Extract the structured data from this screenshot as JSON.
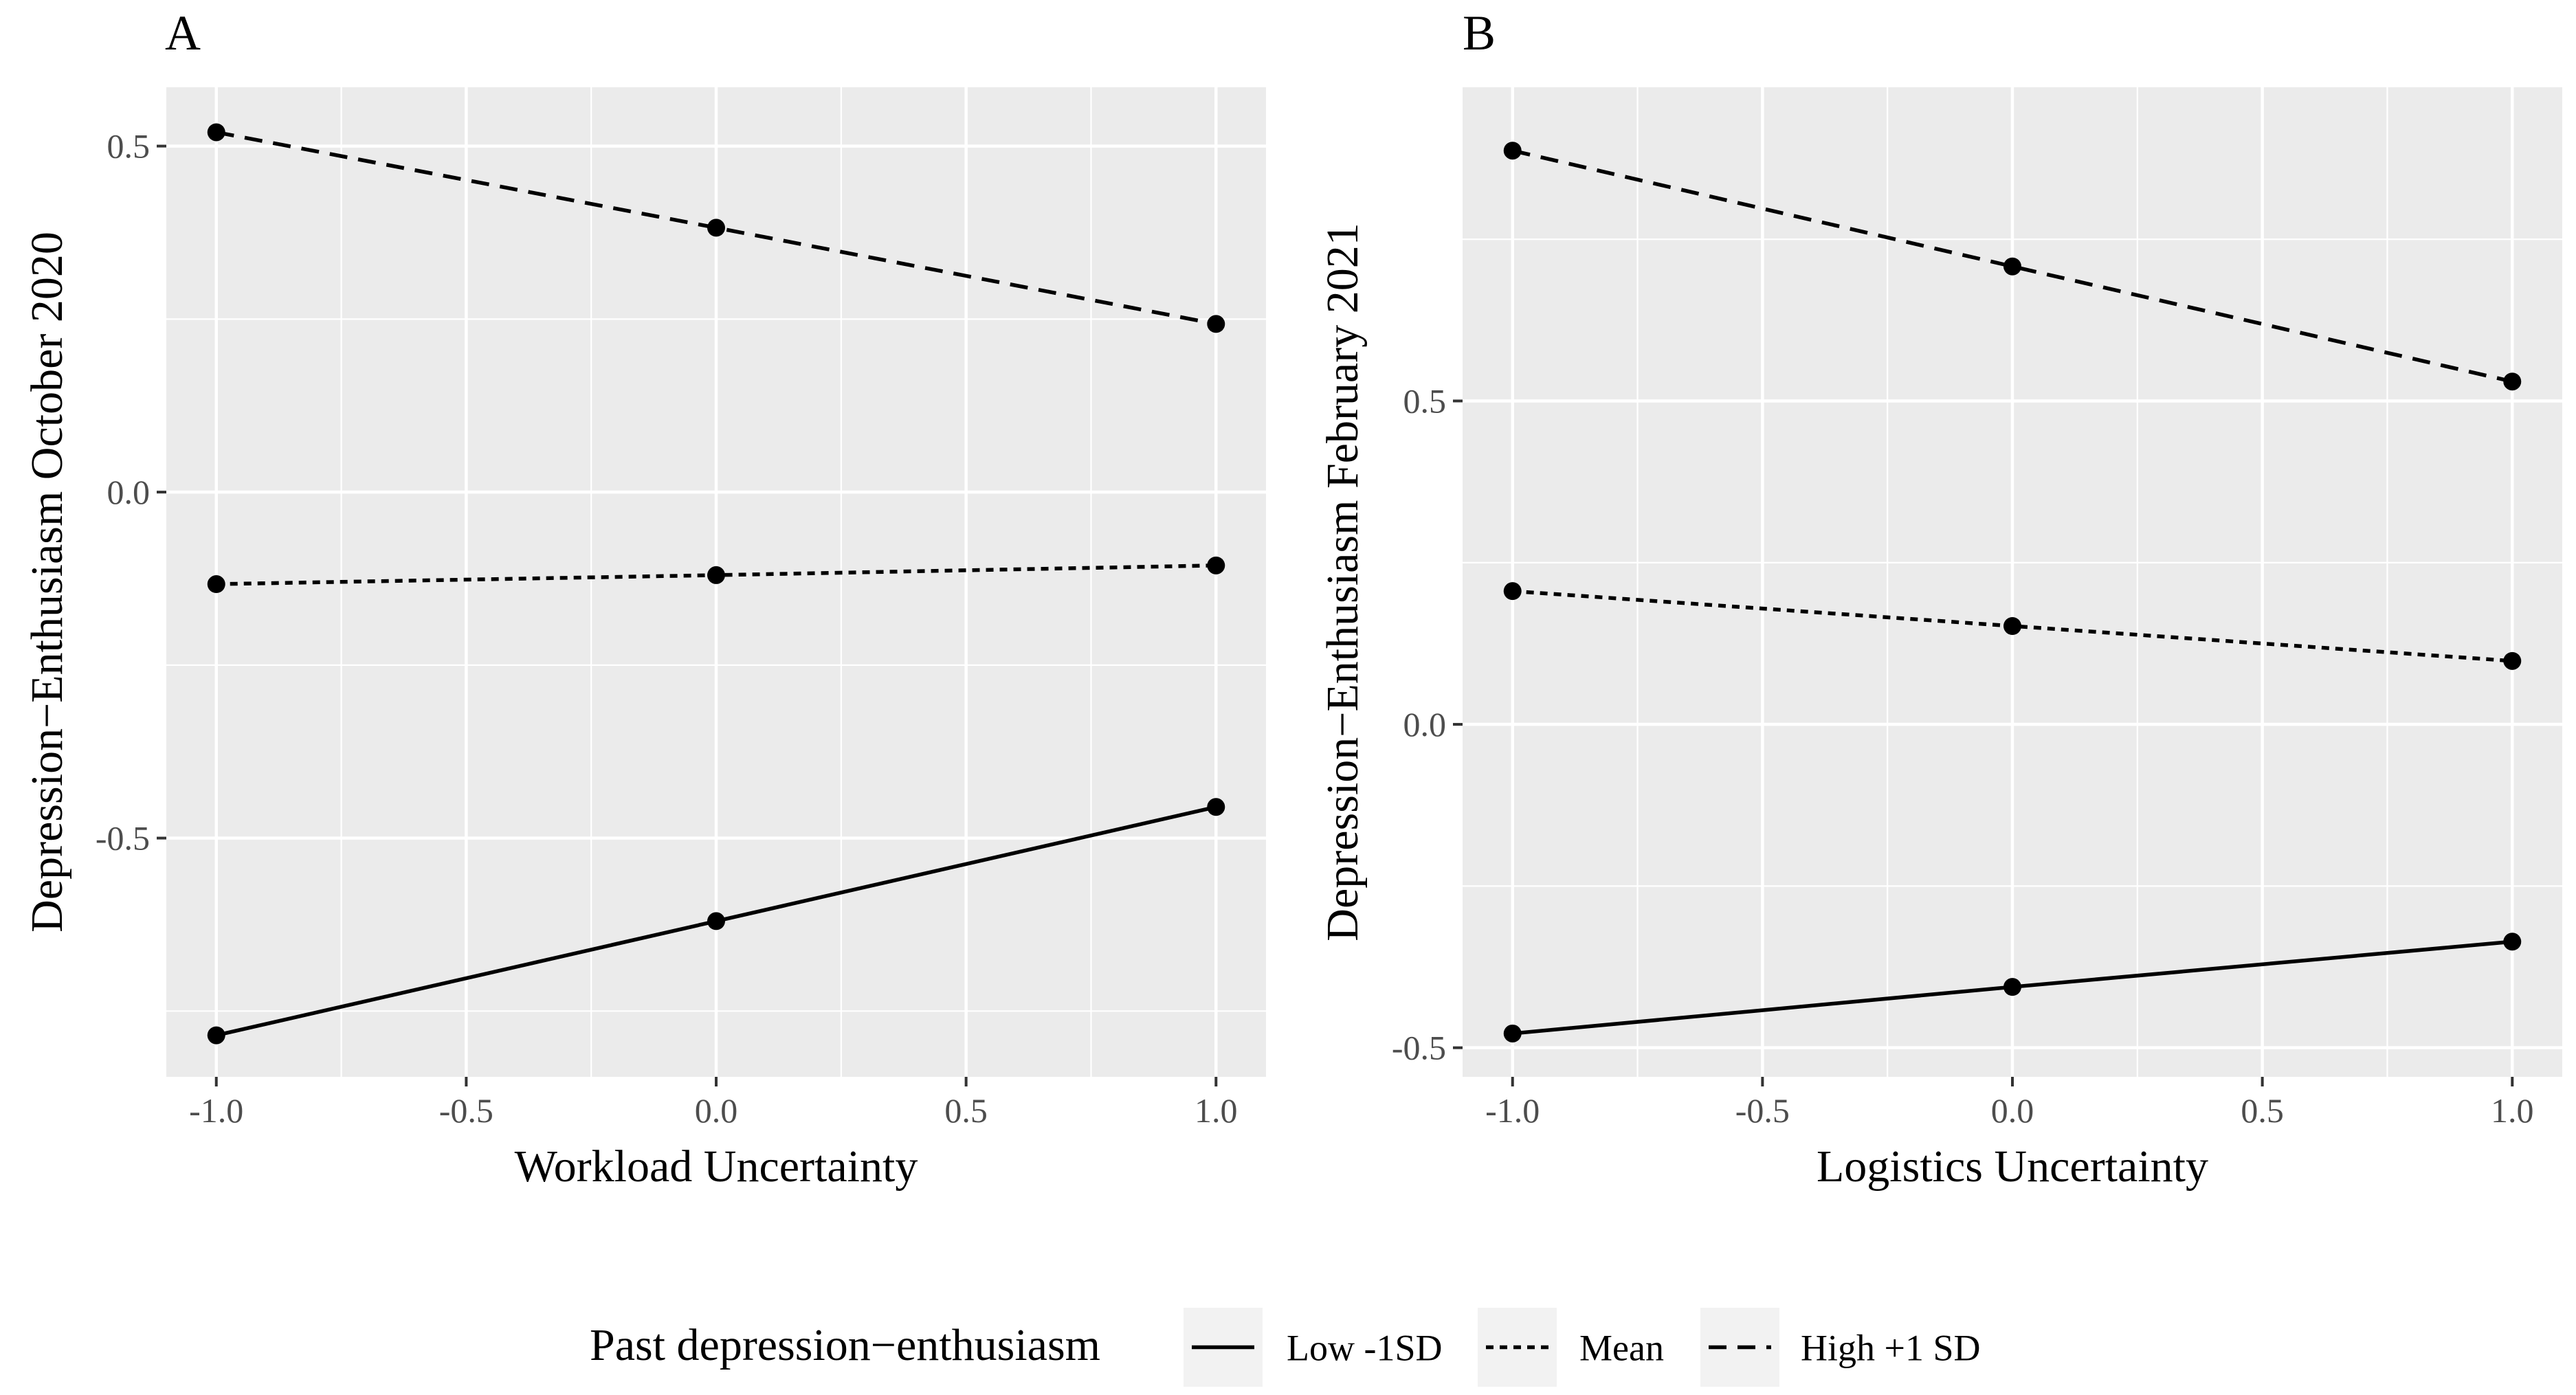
{
  "chart_data": [
    {
      "type": "line",
      "panel_tag": "A",
      "title": "",
      "xlabel": "Workload Uncertainty",
      "ylabel": "Depression−Enthusiasm October 2020",
      "x": [
        -1.0,
        0.0,
        1.0
      ],
      "xlim": [
        -1.1,
        1.1
      ],
      "ylim": [
        -0.845,
        0.585
      ],
      "xticks": [
        -1.0,
        -0.5,
        0.0,
        0.5,
        1.0
      ],
      "xtick_labels": [
        "-1.0",
        "-0.5",
        "0.0",
        "0.5",
        "1.0"
      ],
      "yticks": [
        -0.5,
        0.0,
        0.5
      ],
      "ytick_labels": [
        "-0.5",
        "0.0",
        "0.5"
      ],
      "grid": true,
      "series": [
        {
          "name": "Low -1SD",
          "linestyle": "solid",
          "values": [
            -0.785,
            -0.62,
            -0.455
          ]
        },
        {
          "name": "Mean",
          "linestyle": "dotted",
          "values": [
            -0.133,
            -0.12,
            -0.106
          ]
        },
        {
          "name": "High +1 SD",
          "linestyle": "dashed",
          "values": [
            0.52,
            0.382,
            0.243
          ]
        }
      ]
    },
    {
      "type": "line",
      "panel_tag": "B",
      "title": "",
      "xlabel": "Logistics Uncertainty",
      "ylabel": "Depression−Enthusiasm February 2021",
      "x": [
        -1.0,
        0.0,
        1.0
      ],
      "xlim": [
        -1.1,
        1.1
      ],
      "ylim": [
        -0.545,
        0.985
      ],
      "xticks": [
        -1.0,
        -0.5,
        0.0,
        0.5,
        1.0
      ],
      "xtick_labels": [
        "-1.0",
        "-0.5",
        "0.0",
        "0.5",
        "1.0"
      ],
      "yticks": [
        -0.5,
        0.0,
        0.5
      ],
      "ytick_labels": [
        "-0.5",
        "0.0",
        "0.5"
      ],
      "grid": true,
      "series": [
        {
          "name": "Low -1SD",
          "linestyle": "solid",
          "values": [
            -0.478,
            -0.406,
            -0.336
          ]
        },
        {
          "name": "Mean",
          "linestyle": "dotted",
          "values": [
            0.206,
            0.152,
            0.098
          ]
        },
        {
          "name": "High +1 SD",
          "linestyle": "dashed",
          "values": [
            0.887,
            0.708,
            0.53
          ]
        }
      ]
    }
  ],
  "legend": {
    "title": "Past depression−enthusiasm",
    "position": "bottom",
    "entries": [
      {
        "label": "Low -1SD",
        "linestyle": "solid"
      },
      {
        "label": "Mean",
        "linestyle": "dotted"
      },
      {
        "label": "High +1 SD",
        "linestyle": "dashed"
      }
    ]
  },
  "colors": {
    "panel_background": "#ebebeb",
    "grid": "#ffffff",
    "line": "#000000",
    "tick_label": "#4d4d4d"
  }
}
